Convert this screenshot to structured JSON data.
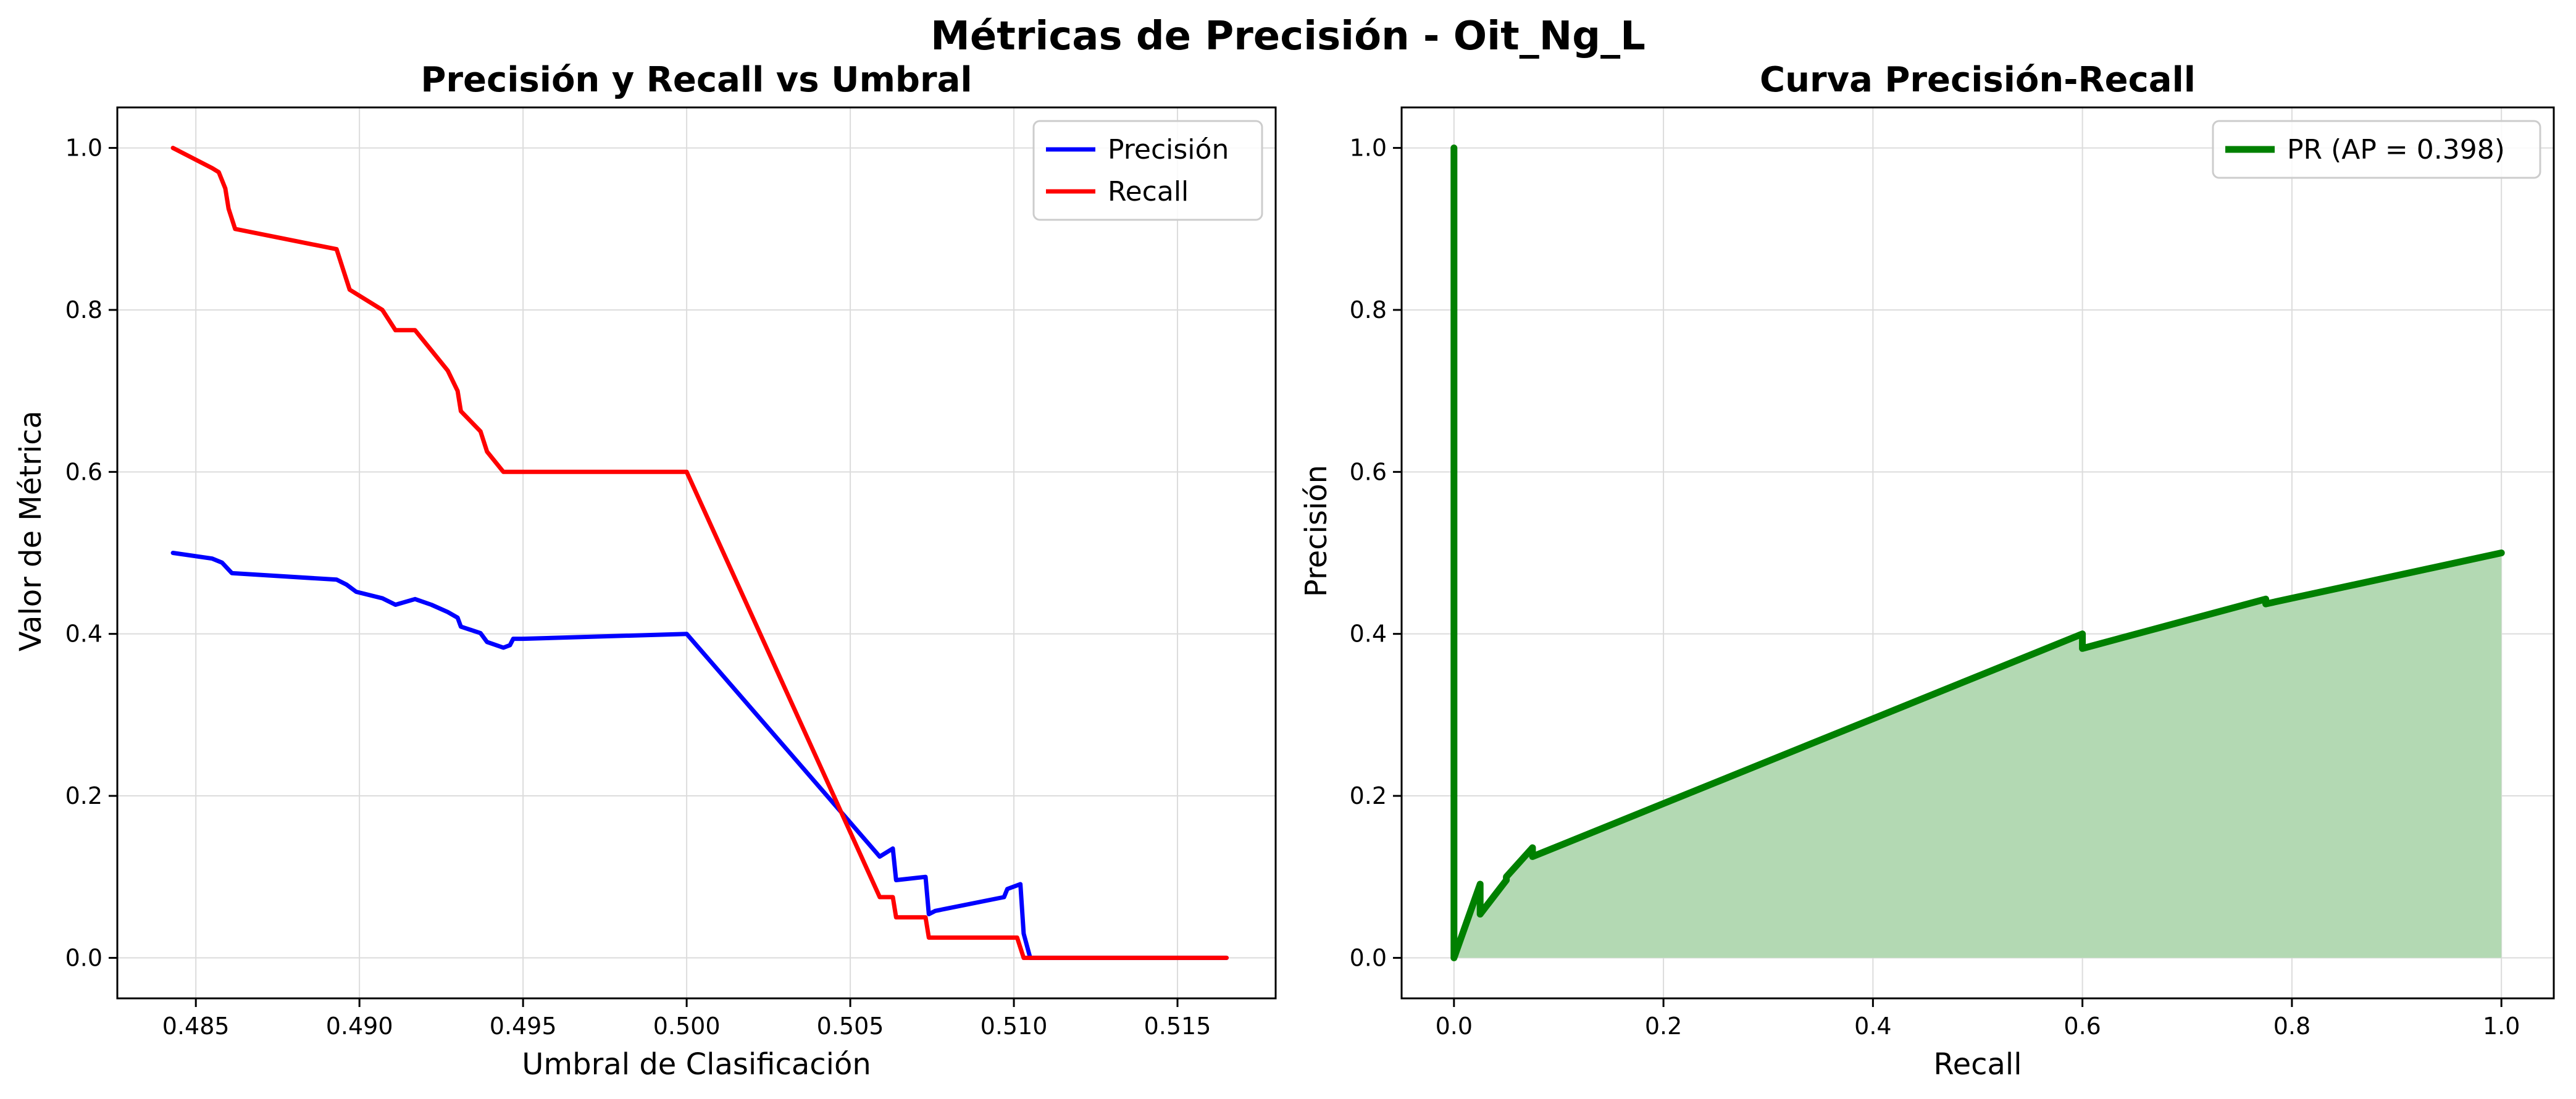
{
  "figure": {
    "suptitle": "Métricas de Precisión - Oit_Ng_L"
  },
  "colors": {
    "precision": "#0000ff",
    "recall": "#ff0000",
    "pr": "#008000",
    "pr_fill": "#b3d9b3",
    "grid": "#dcdcdc"
  },
  "chart_data": [
    {
      "type": "line",
      "title": "Precisión y Recall vs Umbral",
      "xlabel": "Umbral de Clasificación",
      "ylabel": "Valor de Métrica",
      "xlim": [
        0.4826,
        0.518
      ],
      "ylim": [
        -0.05,
        1.05
      ],
      "xticks": [
        "0.485",
        "0.490",
        "0.495",
        "0.500",
        "0.505",
        "0.510",
        "0.515"
      ],
      "yticks": [
        "0.0",
        "0.2",
        "0.4",
        "0.6",
        "0.8",
        "1.0"
      ],
      "grid": true,
      "legend": "top-right",
      "series": [
        {
          "name": "Precisión",
          "color": "#0000ff",
          "x": [
            0.4843,
            0.4855,
            0.4858,
            0.4861,
            0.4893,
            0.4896,
            0.4899,
            0.4907,
            0.4911,
            0.4917,
            0.4922,
            0.4927,
            0.493,
            0.4931,
            0.4937,
            0.4939,
            0.4944,
            0.4946,
            0.4947,
            0.495,
            0.5,
            0.5059,
            0.5063,
            0.5064,
            0.5073,
            0.5074,
            0.5076,
            0.5097,
            0.5098,
            0.5102,
            0.5103,
            0.5105,
            0.5165
          ],
          "y": [
            0.5,
            0.493,
            0.488,
            0.475,
            0.467,
            0.461,
            0.452,
            0.444,
            0.436,
            0.443,
            0.436,
            0.427,
            0.42,
            0.409,
            0.401,
            0.39,
            0.383,
            0.386,
            0.394,
            0.394,
            0.4,
            0.125,
            0.135,
            0.096,
            0.1,
            0.054,
            0.058,
            0.075,
            0.085,
            0.091,
            0.03,
            0.0,
            0.0
          ]
        },
        {
          "name": "Recall",
          "color": "#ff0000",
          "x": [
            0.4843,
            0.4855,
            0.4857,
            0.4859,
            0.486,
            0.4862,
            0.4893,
            0.4895,
            0.4897,
            0.4907,
            0.4911,
            0.4917,
            0.4922,
            0.4927,
            0.493,
            0.4931,
            0.4937,
            0.4939,
            0.4944,
            0.4947,
            0.5,
            0.5059,
            0.5063,
            0.5064,
            0.5073,
            0.5074,
            0.5097,
            0.5101,
            0.5103,
            0.5165
          ],
          "y": [
            1.0,
            0.975,
            0.97,
            0.95,
            0.925,
            0.9,
            0.875,
            0.85,
            0.825,
            0.8,
            0.775,
            0.775,
            0.75,
            0.725,
            0.7,
            0.675,
            0.65,
            0.625,
            0.6,
            0.6,
            0.6,
            0.075,
            0.075,
            0.05,
            0.05,
            0.025,
            0.025,
            0.025,
            0.0,
            0.0
          ]
        }
      ]
    },
    {
      "type": "area",
      "title": "Curva Precisión-Recall",
      "xlabel": "Recall",
      "ylabel": "Precisión",
      "xlim": [
        -0.05,
        1.05
      ],
      "ylim": [
        -0.05,
        1.05
      ],
      "xticks": [
        "0.0",
        "0.2",
        "0.4",
        "0.6",
        "0.8",
        "1.0"
      ],
      "yticks": [
        "0.0",
        "0.2",
        "0.4",
        "0.6",
        "0.8",
        "1.0"
      ],
      "grid": true,
      "legend": "top-right",
      "series": [
        {
          "name": "PR (AP = 0.398)",
          "color": "#008000",
          "x": [
            0.0,
            0.0,
            0.0,
            0.025,
            0.025,
            0.05,
            0.05,
            0.075,
            0.075,
            0.6,
            0.6,
            0.775,
            0.775,
            1.0
          ],
          "y": [
            1.0,
            0.0,
            0.0,
            0.091,
            0.054,
            0.096,
            0.1,
            0.136,
            0.125,
            0.4,
            0.382,
            0.443,
            0.437,
            0.5
          ]
        }
      ]
    }
  ]
}
